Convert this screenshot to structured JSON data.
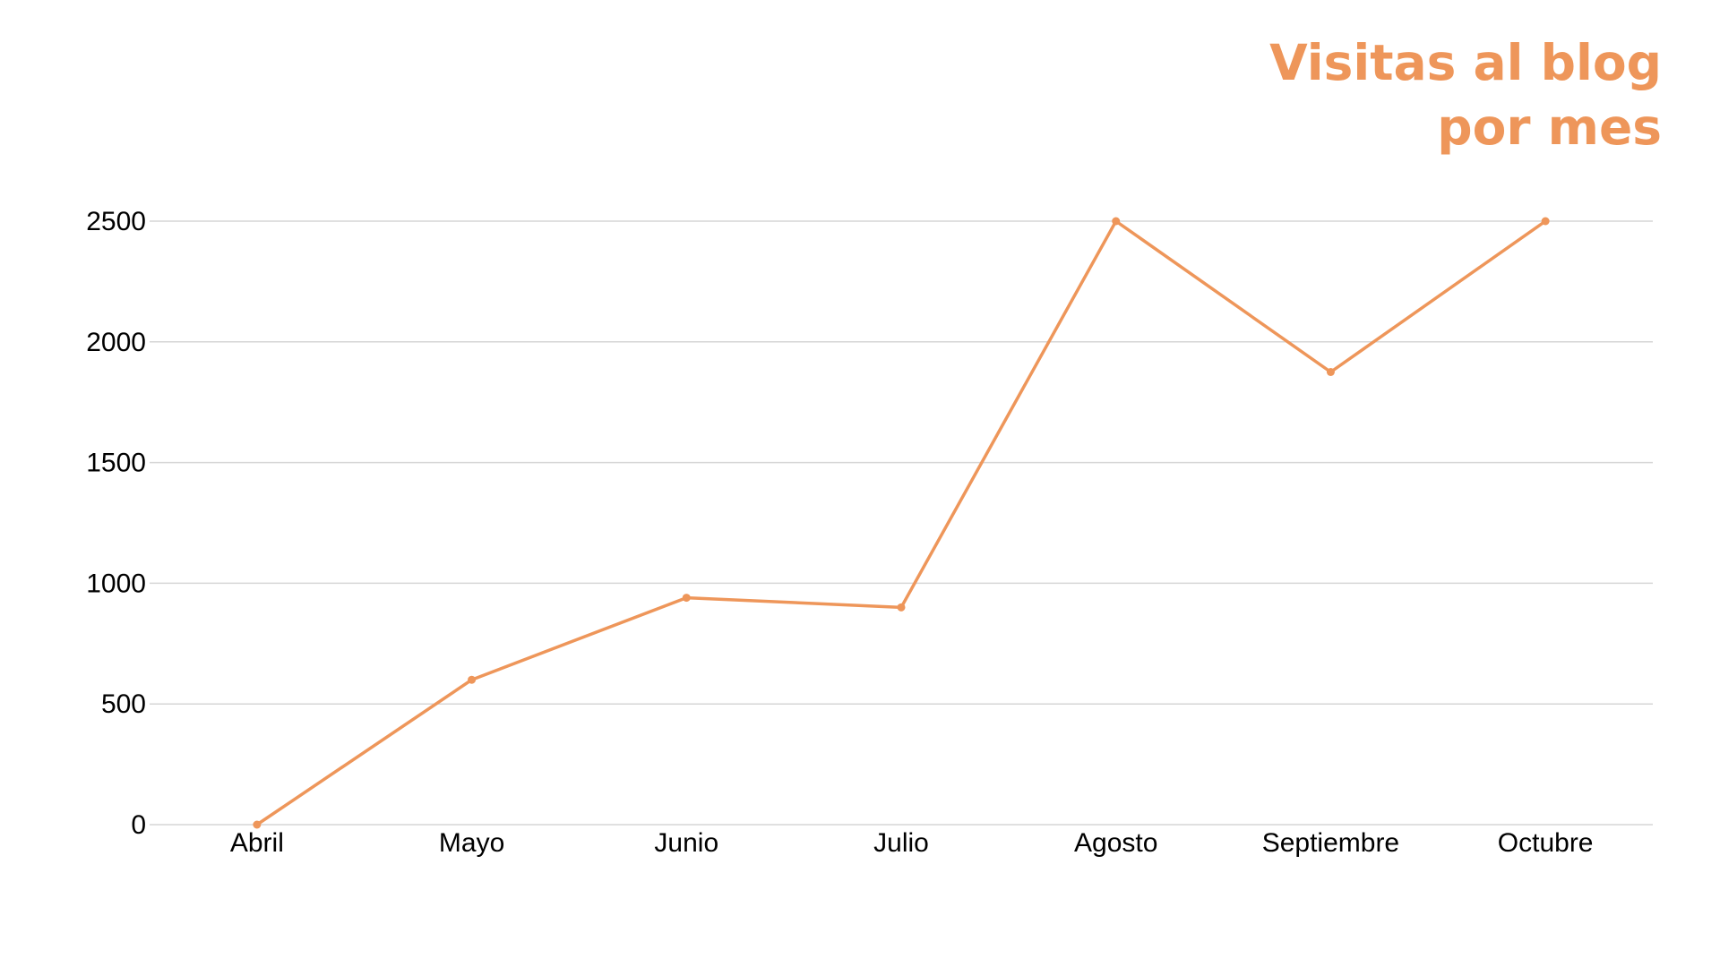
{
  "chart_data": {
    "type": "line",
    "title_lines": [
      "Visitas al blog",
      "por mes"
    ],
    "xlabel": "",
    "ylabel": "",
    "categories": [
      "Abril",
      "Mayo",
      "Junio",
      "Julio",
      "Agosto",
      "Septiembre",
      "Octubre"
    ],
    "series": [
      {
        "values": [
          0,
          600,
          940,
          900,
          2500,
          1875,
          2500
        ],
        "color": "#ee965a"
      }
    ],
    "yticks": [
      0,
      500,
      1000,
      1500,
      2000,
      2500
    ],
    "ylim": [
      0,
      2500
    ],
    "grid": true,
    "legend": "none"
  }
}
